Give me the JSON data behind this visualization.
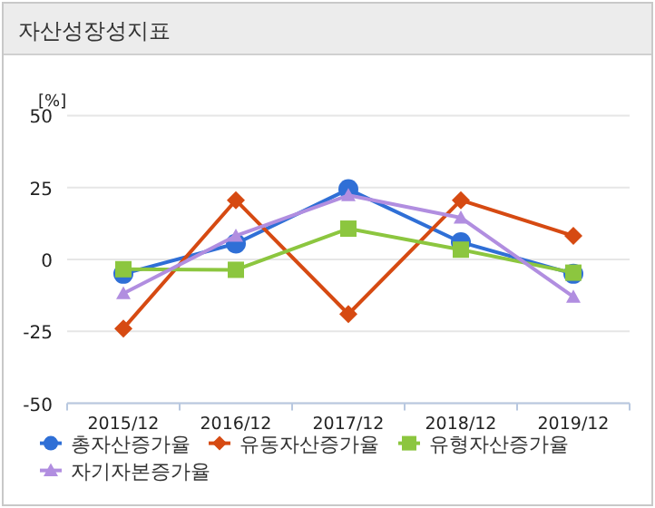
{
  "chart_data": {
    "type": "line",
    "title": "자산성장성지표",
    "ylabel": "[%]",
    "categories": [
      "2015/12",
      "2016/12",
      "2017/12",
      "2018/12",
      "2019/12"
    ],
    "series": [
      {
        "name": "총자산증가율",
        "color": "#2f6fd6",
        "marker": "circle",
        "values": [
          -5,
          5.5,
          24.4,
          6,
          -5
        ]
      },
      {
        "name": "유동자산증가율",
        "color": "#d64a12",
        "marker": "diamond",
        "values": [
          -24,
          20.6,
          -19,
          20.6,
          8.2
        ]
      },
      {
        "name": "유형자산증가율",
        "color": "#8cc63f",
        "marker": "square",
        "values": [
          -3.4,
          -3.6,
          10.7,
          3.4,
          -4.6
        ]
      },
      {
        "name": "자기자본증가율",
        "color": "#b18ee0",
        "marker": "triangle",
        "values": [
          -11.8,
          8.2,
          22.3,
          14.5,
          -13
        ]
      }
    ],
    "ylim": [
      -50,
      50
    ],
    "yticks": [
      -50,
      -25,
      0,
      25,
      50
    ],
    "grid": "y",
    "legend": "bottom"
  }
}
